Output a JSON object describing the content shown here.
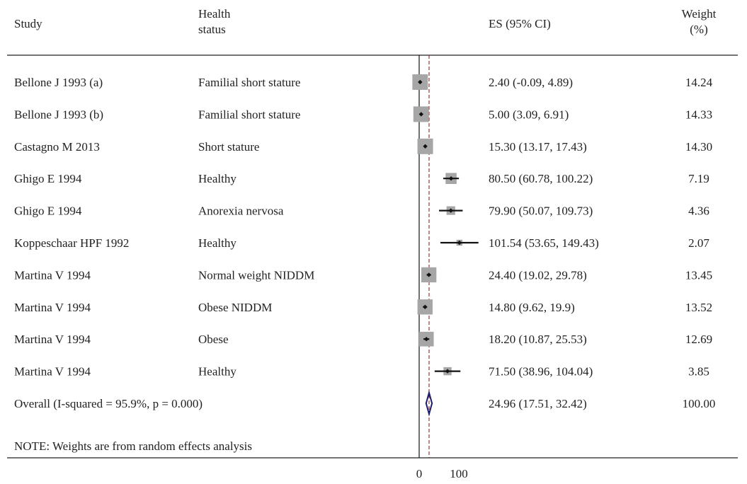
{
  "headers": {
    "study": "Study",
    "health_line1": "Health",
    "health_line2": "status",
    "es": "ES (95% CI)",
    "weight_line1": "Weight",
    "weight_line2": "(%)"
  },
  "note": "NOTE: Weights are from random effects analysis",
  "colors": {
    "box": "#a6a6a6",
    "ci_line": "#111111",
    "point": "#111111",
    "null_line": "#111111",
    "overall_dashed": "#8b2a2a",
    "diamond": "#1c1c6e"
  },
  "chart_data": {
    "type": "forest",
    "x_ticks": [
      0,
      100
    ],
    "null_line": 0,
    "overall_line": 24.96,
    "studies": [
      {
        "study": "Bellone J 1993 (a)",
        "status": "Familial short stature",
        "es": 2.4,
        "lo": -0.09,
        "hi": 4.89,
        "es_text": "2.40 (-0.09, 4.89)",
        "weight": 14.24,
        "weight_text": "14.24"
      },
      {
        "study": "Bellone J 1993 (b)",
        "status": "Familial short stature",
        "es": 5.0,
        "lo": 3.09,
        "hi": 6.91,
        "es_text": "5.00 (3.09, 6.91)",
        "weight": 14.33,
        "weight_text": "14.33"
      },
      {
        "study": "Castagno M 2013",
        "status": "Short stature",
        "es": 15.3,
        "lo": 13.17,
        "hi": 17.43,
        "es_text": "15.30 (13.17, 17.43)",
        "weight": 14.3,
        "weight_text": "14.30"
      },
      {
        "study": "Ghigo E 1994",
        "status": "Healthy",
        "es": 80.5,
        "lo": 60.78,
        "hi": 100.22,
        "es_text": "80.50 (60.78, 100.22)",
        "weight": 7.19,
        "weight_text": "7.19"
      },
      {
        "study": "Ghigo E 1994",
        "status": "Anorexia nervosa",
        "es": 79.9,
        "lo": 50.07,
        "hi": 109.73,
        "es_text": "79.90 (50.07, 109.73)",
        "weight": 4.36,
        "weight_text": "4.36"
      },
      {
        "study": "Koppeschaar HPF 1992",
        "status": "Healthy",
        "es": 101.54,
        "lo": 53.65,
        "hi": 149.43,
        "es_text": "101.54 (53.65, 149.43)",
        "weight": 2.07,
        "weight_text": "2.07"
      },
      {
        "study": "Martina V 1994",
        "status": "Normal weight NIDDM",
        "es": 24.4,
        "lo": 19.02,
        "hi": 29.78,
        "es_text": "24.40 (19.02, 29.78)",
        "weight": 13.45,
        "weight_text": "13.45"
      },
      {
        "study": "Martina V 1994",
        "status": "Obese NIDDM",
        "es": 14.8,
        "lo": 9.62,
        "hi": 19.9,
        "es_text": "14.80 (9.62, 19.9)",
        "weight": 13.52,
        "weight_text": "13.52"
      },
      {
        "study": "Martina V 1994",
        "status": "Obese",
        "es": 18.2,
        "lo": 10.87,
        "hi": 25.53,
        "es_text": "18.20 (10.87, 25.53)",
        "weight": 12.69,
        "weight_text": "12.69"
      },
      {
        "study": "Martina V 1994",
        "status": "Healthy",
        "es": 71.5,
        "lo": 38.96,
        "hi": 104.04,
        "es_text": "71.50 (38.96, 104.04)",
        "weight": 3.85,
        "weight_text": "3.85"
      }
    ],
    "overall": {
      "label": "Overall (I-squared = 95.9%, p = 0.000)",
      "es": 24.96,
      "lo": 17.51,
      "hi": 32.42,
      "es_text": "24.96 (17.51, 32.42)",
      "weight": 100.0,
      "weight_text": "100.00"
    }
  }
}
